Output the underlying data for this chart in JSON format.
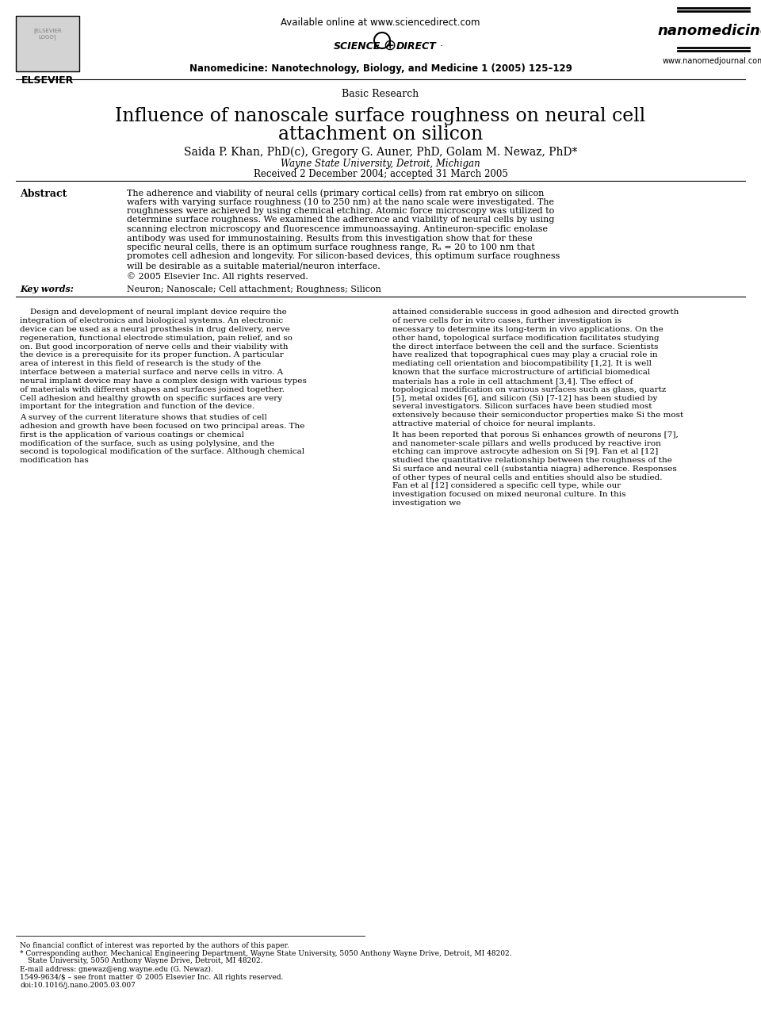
{
  "bg_color": "#ffffff",
  "header_available_text": "Available online at www.sciencedirect.com",
  "journal_name_bold": "Nanomedicine: Nanotechnology, Biology, and Medicine 1 (2005) 125–129",
  "section_label": "Basic Research",
  "paper_title_line1": "Influence of nanoscale surface roughness on neural cell",
  "paper_title_line2": "attachment on silicon",
  "authors": "Saida P. Khan, PhD(c), Gregory G. Auner, PhD, Golam M. Newaz, PhD*",
  "affiliation": "Wayne State University, Detroit, Michigan",
  "received": "Received 2 December 2004; accepted 31 March 2005",
  "abstract_label": "Abstract",
  "abstract_text": "The adherence and viability of neural cells (primary cortical cells) from rat embryo on silicon wafers with varying surface roughness (10 to 250 nm) at the nano scale were investigated. The roughnesses were achieved by using chemical etching. Atomic force microscopy was utilized to determine surface roughness. We examined the adherence and viability of neural cells by using scanning electron microscopy and fluorescence immunoassaying. Antineuron-specific enolase antibody was used for immunostaining. Results from this investigation show that for these specific neural cells, there is an optimum surface roughness range, Rₐ = 20 to 100 nm that promotes cell adhesion and longevity. For silicon-based devices, this optimum surface roughness will be desirable as a suitable material/neuron interface.",
  "copyright_text": "© 2005 Elsevier Inc. All rights reserved.",
  "keywords_label": "Key words:",
  "keywords_text": "Neuron; Nanoscale; Cell attachment; Roughness; Silicon",
  "body_col1_para1": "Design and development of neural implant device require the integration of electronics and biological systems. An electronic device can be used as a neural prosthesis in drug delivery, nerve regeneration, functional electrode stimulation, pain relief, and so on. But good incorporation of nerve cells and their viability with the device is a prerequisite for its proper function. A particular area of interest in this field of research is the study of the interface between a material surface and nerve cells in vitro. A neural implant device may have a complex design with various types of materials with different shapes and surfaces joined together. Cell adhesion and healthy growth on specific surfaces are very important for the integration and function of the device.",
  "body_col1_para2": "A survey of the current literature shows that studies of cell adhesion and growth have been focused on two principal areas. The first is the application of various coatings or chemical modification of the surface, such as using polylysine, and the second is topological modification of the surface. Although chemical modification has",
  "body_col2_para1": "attained considerable success in good adhesion and directed growth of nerve cells for in vitro cases, further investigation is necessary to determine its long-term in vivo applications. On the other hand, topological surface modification facilitates studying the direct interface between the cell and the surface. Scientists have realized that topographical cues may play a crucial role in mediating cell orientation and biocompatibility [1,2]. It is well known that the surface microstructure of artificial biomedical materials has a role in cell attachment [3,4]. The effect of topological modification on various surfaces such as glass, quartz [5], metal oxides [6], and silicon (Si) [7-12] has been studied by several investigators. Silicon surfaces have been studied most extensively because their semiconductor properties make Si the most attractive material of choice for neural implants.",
  "body_col2_para2": "It has been reported that porous Si enhances growth of neurons [7], and nanometer-scale pillars and wells produced by reactive iron etching can improve astrocyte adhesion on Si [9]. Fan et al [12] studied the quantitative relationship between the roughness of the Si surface and neural cell (substantia niagra) adherence. Responses of other types of neural cells and entities should also be studied. Fan et al [12] considered a specific cell type, while our investigation focused on mixed neuronal culture. In this investigation we",
  "footnote1": "No financial conflict of interest was reported by the authors of this paper.",
  "footnote2": "* Corresponding author. Mechanical Engineering Department, Wayne State University, 5050 Anthony Wayne Drive, Detroit, MI 48202.",
  "footnote3": "E-mail address: gnewaz@eng.wayne.edu (G. Newaz).",
  "footnote4": "1549-9634/$ – see front matter © 2005 Elsevier Inc. All rights reserved.",
  "footnote5": "doi:10.1016/j.nano.2005.03.007",
  "sciencedirect_text": "SCIENCE⊕DIRECT·",
  "nanomedicine_text": "nanomedicine",
  "nanomed_url": "www.nanomedjournal.com",
  "elsevier_text": "ELSEVIER"
}
